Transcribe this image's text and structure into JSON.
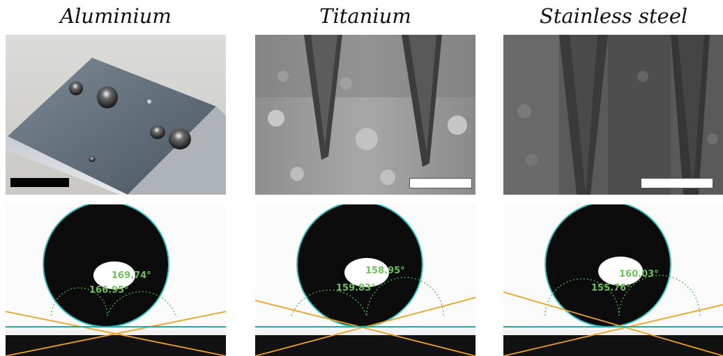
{
  "panels": [
    {
      "title": "Aluminium",
      "angle_top": "169.74°",
      "angle_left": "166.95°",
      "scalebar_color": "#000000"
    },
    {
      "title": "Titanium",
      "angle_top": "158.95°",
      "angle_left": "159.83°",
      "scalebar_color": "#ffffff"
    },
    {
      "title": "Stainless steel",
      "angle_top": "160.03°",
      "angle_left": "155.76°",
      "scalebar_color": "#ffffff"
    }
  ],
  "colors": {
    "drop_outline": "#35c7c7",
    "baseline": "#2aa89a",
    "tangent": "#f0a020",
    "arc": "#4fb84f",
    "angle_text": "#6fc05a"
  }
}
